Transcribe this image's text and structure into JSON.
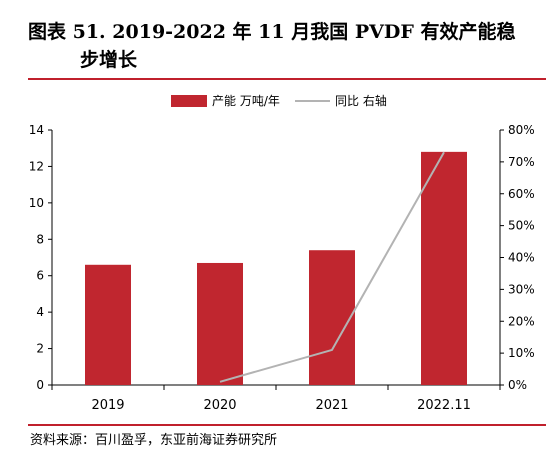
{
  "figure": {
    "title_line1": "图表 51. 2019-2022 年 11 月我国 PVDF 有效产能稳",
    "title_line2": "步增长",
    "source": "资料来源：百川盈孚，东亚前海证券研究所"
  },
  "chart_data": {
    "type": "bar",
    "categories": [
      "2019",
      "2020",
      "2021",
      "2022.11"
    ],
    "series": [
      {
        "name": "产能 万吨/年",
        "type": "bar",
        "axis": "left",
        "color": "#c0262f",
        "values": [
          6.6,
          6.7,
          7.4,
          12.8
        ]
      },
      {
        "name": "同比 右轴",
        "type": "line",
        "axis": "right",
        "color": "#b3b3b3",
        "values": [
          null,
          1,
          11,
          73
        ]
      }
    ],
    "ylim": [
      0,
      14
    ],
    "yticks": [
      "0",
      "2",
      "4",
      "6",
      "8",
      "10",
      "12",
      "14"
    ],
    "y2lim": [
      0,
      80
    ],
    "y2ticks": [
      "0%",
      "10%",
      "20%",
      "30%",
      "40%",
      "50%",
      "60%",
      "70%",
      "80%"
    ],
    "legend": "top-center",
    "grid": false
  }
}
